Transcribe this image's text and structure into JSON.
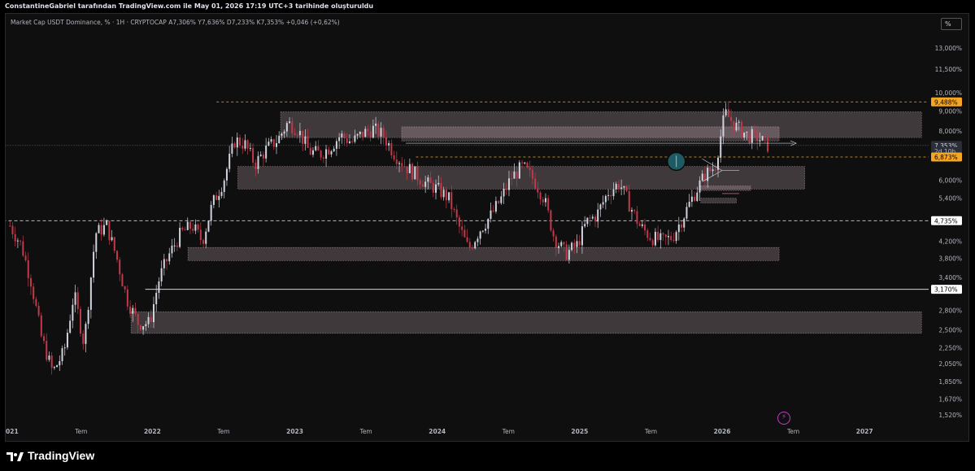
{
  "header": {
    "attribution": "ConstantineGabriel tarafından TradingView.com ile May 01, 2026 17:19 UTC+3 tarihinde oluşturuldu"
  },
  "legend": {
    "symbol": "Market Cap USDT Dominance, % · 1H · CRYPTOCAP",
    "open": "A7,306%",
    "high": "Y7,636%",
    "low": "D7,233%",
    "close": "K7,353%",
    "change": "+0,046 (+0,62%)"
  },
  "toolbar": {
    "scale_button": "%"
  },
  "brand": {
    "name": "TradingView"
  },
  "colors": {
    "background": "#0f0f0f",
    "candle_up": "#d1d4dc",
    "candle_down": "#c2394b",
    "zone_fill": "#f2d0e0",
    "dashed_line": "#d1d4dc",
    "orange_line": "#f5a623",
    "accent": "#2962ff"
  },
  "chart_data": {
    "type": "line",
    "title": "Market Cap USDT Dominance, % · 1H · CRYPTOCAP",
    "scale": "log",
    "ylim": [
      1.45,
      15.0
    ],
    "x_ticks": [
      "2021",
      "Tem",
      "2022",
      "Tem",
      "2023",
      "Tem",
      "2024",
      "Tem",
      "2025",
      "Tem",
      "2026",
      "Tem",
      "2027"
    ],
    "x_tick_dates": [
      2021.0,
      2021.5,
      2022.0,
      2022.5,
      2023.0,
      2023.5,
      2024.0,
      2024.5,
      2025.0,
      2025.5,
      2026.0,
      2026.5,
      2027.0
    ],
    "y_ticks": [
      {
        "value": 13.0,
        "label": "13,000%"
      },
      {
        "value": 11.5,
        "label": "11,500%"
      },
      {
        "value": 10.0,
        "label": "10,000%"
      },
      {
        "value": 9.0,
        "label": "9,000%"
      },
      {
        "value": 8.0,
        "label": "8,000%"
      },
      {
        "value": 6.0,
        "label": "6,000%"
      },
      {
        "value": 5.4,
        "label": "5,400%"
      },
      {
        "value": 4.2,
        "label": "4,200%"
      },
      {
        "value": 3.8,
        "label": "3,800%"
      },
      {
        "value": 3.4,
        "label": "3,400%"
      },
      {
        "value": 2.8,
        "label": "2,800%"
      },
      {
        "value": 2.5,
        "label": "2,500%"
      },
      {
        "value": 2.25,
        "label": "2,250%"
      },
      {
        "value": 2.05,
        "label": "2,050%"
      },
      {
        "value": 1.85,
        "label": "1,850%"
      },
      {
        "value": 1.67,
        "label": "1,670%"
      },
      {
        "value": 1.52,
        "label": "1,520%"
      }
    ],
    "price_labels": [
      {
        "value": 9.488,
        "label": "9,488%",
        "style": "orange"
      },
      {
        "value": 7.353,
        "label": "7,353%",
        "style": "current"
      },
      {
        "value": 7.1,
        "label": "2d 10h",
        "style": "countdown"
      },
      {
        "value": 6.873,
        "label": "6,873%",
        "style": "orange"
      },
      {
        "value": 4.735,
        "label": "4,735%",
        "style": "white"
      },
      {
        "value": 3.17,
        "label": "3,170%",
        "style": "white"
      }
    ],
    "levels": [
      {
        "value": 9.488,
        "style": "orange-dashed",
        "from": 2022.45
      },
      {
        "value": 6.873,
        "style": "orange-dashed",
        "from": 2023.85
      },
      {
        "value": 4.735,
        "style": "white-dashed",
        "from": 2020.95
      },
      {
        "value": 3.17,
        "style": "white-solid",
        "from": 2021.95
      },
      {
        "value": 7.353,
        "style": "dotted",
        "from": 2020.95
      }
    ],
    "zones": [
      {
        "x0": 2022.9,
        "x1": 2027.4,
        "y0": 7.7,
        "y1": 8.95
      },
      {
        "x0": 2023.75,
        "x1": 2026.4,
        "y0": 7.55,
        "y1": 8.2
      },
      {
        "x0": 2022.6,
        "x1": 2026.58,
        "y0": 5.7,
        "y1": 6.5
      },
      {
        "x0": 2022.25,
        "x1": 2026.4,
        "y0": 3.75,
        "y1": 4.05
      },
      {
        "x0": 2021.85,
        "x1": 2027.4,
        "y0": 2.45,
        "y1": 2.78
      },
      {
        "x0": 2025.85,
        "x1": 2026.2,
        "y0": 5.65,
        "y1": 5.8
      },
      {
        "x0": 2025.85,
        "x1": 2026.1,
        "y0": 5.25,
        "y1": 5.4
      }
    ],
    "series": [
      {
        "x": [
          2021.0,
          2021.08,
          2021.15,
          2021.22,
          2021.3,
          2021.38,
          2021.45,
          2021.52,
          2021.6,
          2021.68,
          2021.75,
          2021.82,
          2021.9,
          2021.98,
          2022.05,
          2022.12,
          2022.2,
          2022.28,
          2022.35,
          2022.42,
          2022.5,
          2022.58,
          2022.65,
          2022.72,
          2022.8,
          2022.88,
          2022.95,
          2023.02,
          2023.1,
          2023.18,
          2023.25,
          2023.32,
          2023.4,
          2023.48,
          2023.55,
          2023.62,
          2023.7,
          2023.78,
          2023.85,
          2023.92,
          2024.0,
          2024.08,
          2024.15,
          2024.22,
          2024.3,
          2024.38,
          2024.45,
          2024.52,
          2024.6,
          2024.68,
          2024.75,
          2024.82,
          2024.9,
          2024.98,
          2025.05,
          2025.12,
          2025.2,
          2025.28,
          2025.35,
          2025.42,
          2025.5,
          2025.58,
          2025.65,
          2025.72,
          2025.8,
          2025.88,
          2025.95,
          2026.02,
          2026.1,
          2026.18,
          2026.25,
          2026.32
        ],
        "y": [
          4.6,
          4.1,
          3.3,
          2.4,
          1.95,
          2.2,
          3.1,
          2.3,
          4.4,
          4.6,
          3.8,
          3.0,
          2.6,
          2.6,
          3.4,
          3.9,
          4.4,
          4.6,
          4.2,
          5.2,
          6.0,
          7.6,
          7.4,
          6.6,
          7.2,
          7.6,
          8.4,
          8.1,
          7.1,
          7.0,
          7.3,
          7.8,
          7.5,
          7.9,
          8.1,
          7.8,
          7.0,
          6.5,
          6.2,
          5.9,
          5.7,
          5.4,
          4.6,
          4.0,
          4.5,
          4.9,
          5.4,
          6.1,
          6.5,
          6.0,
          5.4,
          4.3,
          3.9,
          4.1,
          4.7,
          4.9,
          5.6,
          5.9,
          5.2,
          4.6,
          4.3,
          4.2,
          4.3,
          4.8,
          5.5,
          6.2,
          6.5,
          8.9,
          8.2,
          7.8,
          7.7,
          7.353
        ]
      }
    ]
  }
}
